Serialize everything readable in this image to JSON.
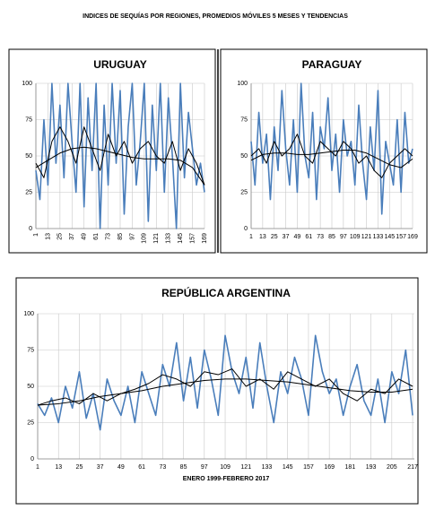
{
  "title": "INDICES DE SEQUÍAS POR REGIONES, PROMEDIOS MÓVILES 5 MESES Y TENDENCIAS",
  "chart_data": [
    {
      "type": "line",
      "title": "URUGUAY",
      "xlim": [
        1,
        169
      ],
      "ylim": [
        0,
        100
      ],
      "xticks": [
        1,
        13,
        25,
        37,
        49,
        61,
        73,
        85,
        97,
        109,
        121,
        133,
        145,
        157,
        169
      ],
      "yticks": [
        0,
        25,
        50,
        75,
        100
      ],
      "grid": true,
      "series": [
        {
          "color": "#4a7ebb",
          "x": [
            1,
            5,
            9,
            13,
            17,
            21,
            25,
            29,
            33,
            37,
            41,
            45,
            49,
            53,
            57,
            61,
            65,
            69,
            73,
            77,
            81,
            85,
            89,
            93,
            97,
            101,
            105,
            109,
            113,
            117,
            121,
            125,
            129,
            133,
            137,
            141,
            145,
            149,
            153,
            157,
            161,
            165,
            169
          ],
          "values": [
            40,
            20,
            75,
            30,
            100,
            45,
            85,
            35,
            100,
            60,
            25,
            100,
            15,
            90,
            40,
            100,
            0,
            85,
            30,
            100,
            45,
            95,
            10,
            70,
            100,
            30,
            60,
            100,
            5,
            85,
            40,
            100,
            25,
            90,
            50,
            0,
            100,
            35,
            80,
            55,
            30,
            45,
            25
          ]
        },
        {
          "color": "#000000",
          "x": [
            1,
            9,
            17,
            25,
            33,
            41,
            49,
            57,
            65,
            73,
            81,
            89,
            97,
            105,
            113,
            121,
            129,
            137,
            145,
            153,
            161,
            169
          ],
          "values": [
            45,
            35,
            60,
            70,
            60,
            45,
            70,
            55,
            40,
            65,
            50,
            60,
            45,
            55,
            60,
            50,
            45,
            60,
            40,
            55,
            45,
            30
          ]
        },
        {
          "color": "#000000",
          "x": [
            1,
            13,
            25,
            37,
            49,
            61,
            73,
            85,
            97,
            109,
            121,
            133,
            145,
            157,
            169
          ],
          "values": [
            42,
            47,
            52,
            55,
            56,
            55,
            53,
            51,
            49,
            48,
            48,
            48,
            47,
            42,
            30
          ]
        }
      ]
    },
    {
      "type": "line",
      "title": "PARAGUAY",
      "xlim": [
        1,
        169
      ],
      "ylim": [
        0,
        100
      ],
      "xticks": [
        1,
        13,
        25,
        37,
        49,
        61,
        73,
        85,
        97,
        109,
        121,
        133,
        145,
        157,
        169
      ],
      "yticks": [
        0,
        25,
        50,
        75,
        100
      ],
      "grid": true,
      "series": [
        {
          "color": "#4a7ebb",
          "x": [
            1,
            5,
            9,
            13,
            17,
            21,
            25,
            29,
            33,
            37,
            41,
            45,
            49,
            53,
            57,
            61,
            65,
            69,
            73,
            77,
            81,
            85,
            89,
            93,
            97,
            101,
            105,
            109,
            113,
            117,
            121,
            125,
            129,
            133,
            137,
            141,
            145,
            149,
            153,
            157,
            161,
            165,
            169
          ],
          "values": [
            60,
            30,
            80,
            45,
            65,
            20,
            70,
            40,
            95,
            55,
            30,
            75,
            25,
            100,
            50,
            35,
            80,
            20,
            70,
            55,
            90,
            40,
            65,
            25,
            75,
            50,
            60,
            30,
            85,
            45,
            20,
            70,
            40,
            95,
            10,
            60,
            45,
            30,
            75,
            25,
            80,
            45,
            55
          ]
        },
        {
          "color": "#000000",
          "x": [
            1,
            9,
            17,
            25,
            33,
            41,
            49,
            57,
            65,
            73,
            81,
            89,
            97,
            105,
            113,
            121,
            129,
            137,
            145,
            153,
            161,
            169
          ],
          "values": [
            50,
            55,
            45,
            60,
            50,
            55,
            65,
            50,
            45,
            60,
            55,
            50,
            60,
            55,
            45,
            50,
            40,
            35,
            45,
            50,
            55,
            50
          ]
        },
        {
          "color": "#000000",
          "x": [
            1,
            13,
            25,
            37,
            49,
            61,
            73,
            85,
            97,
            109,
            121,
            133,
            145,
            157,
            169
          ],
          "values": [
            47,
            51,
            52,
            52,
            51,
            51,
            52,
            53,
            54,
            54,
            52,
            48,
            44,
            42,
            48
          ]
        }
      ]
    },
    {
      "type": "line",
      "title": "REPÚBLICA ARGENTINA",
      "xlabel": "ENERO 1999-FEBRERO 2017",
      "xlim": [
        1,
        218
      ],
      "ylim": [
        0,
        100
      ],
      "xticks": [
        1,
        13,
        25,
        37,
        49,
        61,
        73,
        85,
        97,
        109,
        121,
        133,
        145,
        157,
        169,
        181,
        193,
        205,
        217
      ],
      "yticks": [
        0,
        25,
        50,
        75,
        100
      ],
      "grid": true,
      "series": [
        {
          "color": "#4a7ebb",
          "x": [
            1,
            5,
            9,
            13,
            17,
            21,
            25,
            29,
            33,
            37,
            41,
            45,
            49,
            53,
            57,
            61,
            65,
            69,
            73,
            77,
            81,
            85,
            89,
            93,
            97,
            101,
            105,
            109,
            113,
            117,
            121,
            125,
            129,
            133,
            137,
            141,
            145,
            149,
            153,
            157,
            161,
            165,
            169,
            173,
            177,
            181,
            185,
            189,
            193,
            197,
            201,
            205,
            209,
            213,
            217
          ],
          "values": [
            38,
            30,
            42,
            25,
            50,
            35,
            60,
            28,
            45,
            20,
            55,
            40,
            30,
            50,
            25,
            60,
            45,
            30,
            65,
            50,
            80,
            40,
            70,
            35,
            75,
            55,
            30,
            85,
            60,
            45,
            70,
            35,
            80,
            50,
            25,
            60,
            45,
            70,
            55,
            30,
            85,
            60,
            45,
            55,
            30,
            50,
            65,
            40,
            30,
            55,
            25,
            60,
            45,
            75,
            30
          ]
        },
        {
          "color": "#000000",
          "x": [
            1,
            9,
            17,
            25,
            33,
            41,
            49,
            57,
            65,
            73,
            81,
            89,
            97,
            105,
            113,
            121,
            129,
            137,
            145,
            153,
            161,
            169,
            177,
            185,
            193,
            201,
            209,
            217
          ],
          "values": [
            37,
            40,
            42,
            38,
            45,
            40,
            45,
            48,
            52,
            58,
            55,
            50,
            60,
            58,
            62,
            50,
            55,
            48,
            60,
            55,
            50,
            55,
            45,
            40,
            48,
            45,
            55,
            50
          ]
        },
        {
          "color": "#000000",
          "x": [
            1,
            13,
            25,
            37,
            49,
            61,
            73,
            85,
            97,
            109,
            121,
            133,
            145,
            157,
            169,
            181,
            193,
            205,
            217
          ],
          "values": [
            37,
            38,
            40,
            43,
            45,
            47,
            50,
            52,
            54,
            55,
            55,
            54,
            53,
            51,
            49,
            47,
            46,
            46,
            48
          ]
        }
      ]
    }
  ]
}
